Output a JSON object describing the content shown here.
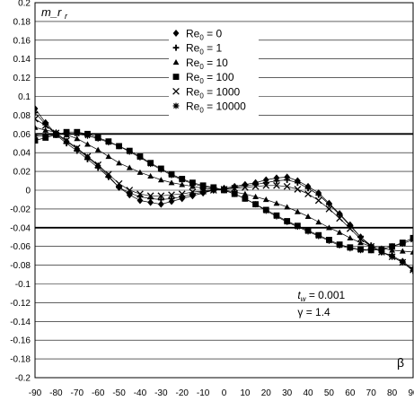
{
  "chart_data": {
    "type": "scatter",
    "ylabel": "m_r",
    "xlabel": "β",
    "xlim": [
      -90,
      90
    ],
    "ylim": [
      -0.2,
      0.2
    ],
    "x_ticks": [
      -90,
      -80,
      -70,
      -60,
      -50,
      -40,
      -30,
      -20,
      -10,
      0,
      10,
      20,
      30,
      40,
      50,
      60,
      70,
      80,
      90
    ],
    "y_ticks": [
      0.2,
      0.18,
      0.16,
      0.14,
      0.12,
      0.1,
      0.08,
      0.06,
      0.04,
      0.02,
      0,
      -0.02,
      -0.04,
      -0.06,
      -0.08,
      -0.1,
      -0.12,
      -0.14,
      -0.16,
      -0.18,
      -0.2
    ],
    "x_tick_labels": [
      "-90",
      "-80",
      "-70",
      "-60",
      "-50",
      "-40",
      "-30",
      "-20",
      "-10",
      "0",
      "10",
      "20",
      "30",
      "40",
      "50",
      "60",
      "70",
      "80",
      "90"
    ],
    "y_tick_labels": [
      "0.2",
      "0.18",
      "0.16",
      "0.14",
      "0.12",
      "0.1",
      "0.08",
      "0.06",
      "0.04",
      "0.02",
      "0",
      "-0.02",
      "-0.04",
      "-0.06",
      "-0.08",
      "-0.1",
      "-0.12",
      "-0.14",
      "-0.16",
      "-0.18",
      "-0.2"
    ],
    "grid": "horizontal",
    "reference_lines_y": [
      0.06,
      -0.04
    ],
    "legend_position": "top-center",
    "legend": [
      {
        "marker": "diamond",
        "label": "Re",
        "sub": "0",
        "tail": " = 0"
      },
      {
        "marker": "plus",
        "label": "Re",
        "sub": "0",
        "tail": " = 1"
      },
      {
        "marker": "triangle",
        "label": "Re",
        "sub": "0",
        "tail": " = 10"
      },
      {
        "marker": "square",
        "label": "Re",
        "sub": "0",
        "tail": " = 100"
      },
      {
        "marker": "x",
        "label": "Re",
        "sub": "0",
        "tail": " = 1000"
      },
      {
        "marker": "asterisk",
        "label": "Re",
        "sub": "0",
        "tail": " = 10000"
      }
    ],
    "annotations": [
      {
        "main": "t",
        "sub": "w",
        "tail": " = 0.001",
        "x": 35,
        "y": -0.116
      },
      {
        "main": "",
        "sub": "",
        "tail": "γ = 1.4",
        "x": 35,
        "y": -0.134
      }
    ],
    "x": [
      -90,
      -85,
      -80,
      -75,
      -70,
      -65,
      -60,
      -55,
      -50,
      -45,
      -40,
      -35,
      -30,
      -25,
      -20,
      -15,
      -10,
      -5,
      0,
      5,
      10,
      15,
      20,
      25,
      30,
      35,
      40,
      45,
      50,
      55,
      60,
      65,
      70,
      75,
      80,
      85,
      90
    ],
    "series": [
      {
        "name": "Re0 = 0",
        "marker": "diamond",
        "values": [
          0.087,
          0.072,
          0.06,
          0.052,
          0.044,
          0.035,
          0.026,
          0.015,
          0.003,
          -0.005,
          -0.011,
          -0.013,
          -0.015,
          -0.012,
          -0.009,
          -0.006,
          -0.003,
          0.0,
          0.002,
          0.004,
          0.006,
          0.008,
          0.011,
          0.013,
          0.014,
          0.01,
          0.004,
          -0.003,
          -0.014,
          -0.025,
          -0.037,
          -0.05,
          -0.06,
          -0.066,
          -0.07,
          -0.076,
          -0.084
        ]
      },
      {
        "name": "Re0 = 1",
        "marker": "plus",
        "values": [
          0.083,
          0.07,
          0.059,
          0.05,
          0.042,
          0.033,
          0.024,
          0.014,
          0.003,
          -0.003,
          -0.007,
          -0.009,
          -0.01,
          -0.009,
          -0.007,
          -0.004,
          -0.002,
          0.0,
          0.001,
          0.003,
          0.005,
          0.006,
          0.008,
          0.01,
          0.011,
          0.008,
          0.002,
          -0.005,
          -0.015,
          -0.026,
          -0.038,
          -0.05,
          -0.059,
          -0.066,
          -0.071,
          -0.077,
          -0.086
        ]
      },
      {
        "name": "Re0 = 10",
        "marker": "triangle",
        "values": [
          0.067,
          0.064,
          0.062,
          0.059,
          0.055,
          0.049,
          0.043,
          0.036,
          0.029,
          0.024,
          0.019,
          0.015,
          0.011,
          0.008,
          0.006,
          0.004,
          0.002,
          0.001,
          0.0,
          -0.002,
          -0.004,
          -0.007,
          -0.01,
          -0.014,
          -0.018,
          -0.023,
          -0.028,
          -0.034,
          -0.04,
          -0.045,
          -0.051,
          -0.056,
          -0.06,
          -0.062,
          -0.064,
          -0.065,
          -0.066
        ]
      },
      {
        "name": "Re0 = 100",
        "marker": "square",
        "values": [
          0.053,
          0.056,
          0.059,
          0.062,
          0.062,
          0.06,
          0.056,
          0.052,
          0.047,
          0.042,
          0.036,
          0.029,
          0.023,
          0.017,
          0.012,
          0.008,
          0.005,
          0.003,
          0.0,
          -0.004,
          -0.009,
          -0.015,
          -0.021,
          -0.027,
          -0.033,
          -0.038,
          -0.043,
          -0.048,
          -0.053,
          -0.058,
          -0.061,
          -0.063,
          -0.064,
          -0.063,
          -0.06,
          -0.056,
          -0.051
        ]
      },
      {
        "name": "Re0 = 1000",
        "marker": "x",
        "values": [
          0.076,
          0.069,
          0.061,
          0.053,
          0.045,
          0.036,
          0.027,
          0.017,
          0.007,
          0.0,
          -0.004,
          -0.006,
          -0.006,
          -0.005,
          -0.004,
          -0.002,
          -0.001,
          0.0,
          0.001,
          0.002,
          0.003,
          0.004,
          0.005,
          0.005,
          0.004,
          0.001,
          -0.004,
          -0.011,
          -0.02,
          -0.03,
          -0.041,
          -0.052,
          -0.06,
          -0.066,
          -0.071,
          -0.077,
          -0.085
        ]
      },
      {
        "name": "Re0 = 10000",
        "marker": "asterisk",
        "values": [
          0.058,
          0.058,
          0.059,
          0.061,
          0.06,
          0.058,
          0.055,
          0.051,
          0.047,
          0.041,
          0.035,
          0.028,
          0.022,
          0.016,
          0.011,
          0.007,
          0.004,
          0.002,
          0.0,
          -0.004,
          -0.009,
          -0.015,
          -0.022,
          -0.028,
          -0.034,
          -0.039,
          -0.044,
          -0.049,
          -0.054,
          -0.059,
          -0.062,
          -0.064,
          -0.064,
          -0.063,
          -0.06,
          -0.057,
          -0.053
        ]
      }
    ]
  }
}
